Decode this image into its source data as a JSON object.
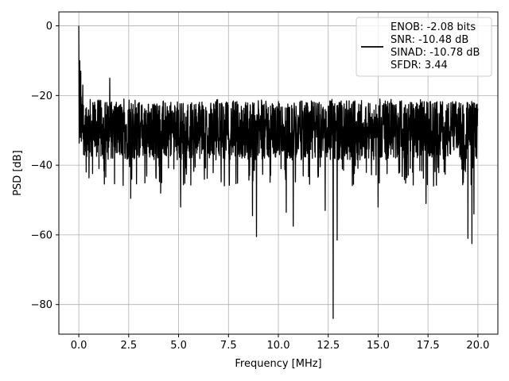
{
  "chart_data": {
    "type": "line",
    "title": "",
    "xlabel": "Frequency [MHz]",
    "ylabel": "PSD [dB]",
    "xlim": [
      -1.0,
      21.0
    ],
    "ylim": [
      -88.5,
      4.0
    ],
    "grid": true,
    "x_ticks": [
      0.0,
      2.5,
      5.0,
      7.5,
      10.0,
      12.5,
      15.0,
      17.5,
      20.0
    ],
    "x_tick_labels": [
      "0.0",
      "2.5",
      "5.0",
      "7.5",
      "10.0",
      "12.5",
      "15.0",
      "17.5",
      "20.0"
    ],
    "y_ticks": [
      0,
      -20,
      -40,
      -60,
      -80
    ],
    "y_tick_labels": [
      "0",
      "−20",
      "−40",
      "−60",
      "−80"
    ],
    "legend": {
      "placement": "top-right",
      "lines": [
        "ENOB: -2.08 bits",
        "SNR: -10.48 dB",
        "SINAD: -10.78 dB",
        "SFDR: 3.44"
      ]
    },
    "series": [
      {
        "color": "#000000",
        "x_range": [
          0.0,
          20.0
        ],
        "n_points": 2000,
        "baseline_db": -30,
        "approx_range_db": [
          -40,
          -20
        ],
        "peaks": [
          {
            "x": 0.0,
            "y": 0.0
          },
          {
            "x": 0.05,
            "y": -10.0
          },
          {
            "x": 0.1,
            "y": -13.0
          },
          {
            "x": 0.2,
            "y": -17.0
          },
          {
            "x": 1.55,
            "y": -15.0
          }
        ],
        "dips": [
          {
            "x": 2.6,
            "y": -49.5
          },
          {
            "x": 4.1,
            "y": -48.0
          },
          {
            "x": 5.1,
            "y": -52.0
          },
          {
            "x": 8.7,
            "y": -54.5
          },
          {
            "x": 8.9,
            "y": -60.5
          },
          {
            "x": 10.4,
            "y": -53.5
          },
          {
            "x": 10.75,
            "y": -57.5
          },
          {
            "x": 12.35,
            "y": -53.0
          },
          {
            "x": 12.75,
            "y": -84.0
          },
          {
            "x": 12.95,
            "y": -61.5
          },
          {
            "x": 15.0,
            "y": -52.0
          },
          {
            "x": 17.4,
            "y": -51.0
          },
          {
            "x": 19.5,
            "y": -61.0
          },
          {
            "x": 19.7,
            "y": -62.5
          },
          {
            "x": 19.8,
            "y": -54.0
          }
        ]
      }
    ]
  }
}
